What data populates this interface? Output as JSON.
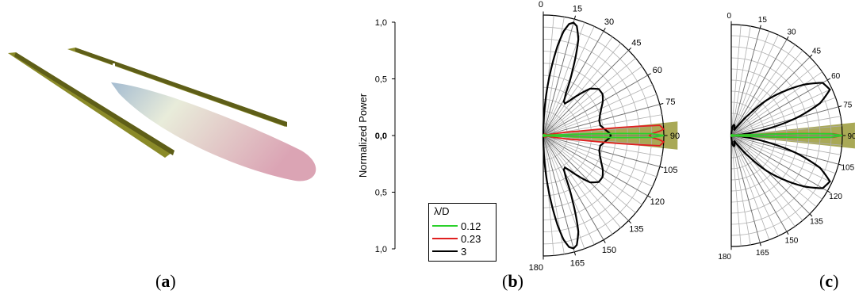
{
  "panel_labels": {
    "a": "a",
    "b": "b",
    "c": "c"
  },
  "colors": {
    "blade": "#8a8a28",
    "blade_dark": "#5e5e18",
    "lobe_pink": "#d79aac",
    "lobe_light": "#e6ead6",
    "lobe_blue": "#9ab4cc",
    "shade": "#8c8c1e"
  },
  "chart_data": [
    {
      "type": "line",
      "panel": "b",
      "coordinate_system": "polar-half",
      "ylabel": "Normalized Power",
      "ylim": [
        -1,
        1
      ],
      "radial_ticks": [
        "1,0",
        "0,5",
        "0,0",
        "0,5",
        "1,0"
      ],
      "angle_ticks": [
        "0",
        "15",
        "30",
        "45",
        "60",
        "75",
        "90",
        "105",
        "120",
        "135",
        "150",
        "165",
        "180"
      ],
      "angle_range_deg": [
        0,
        180
      ],
      "angle_zero_direction": "top",
      "grid": true,
      "legend": {
        "title": "λ/D",
        "entries": [
          "0.12",
          "0.23",
          "3"
        ],
        "placement": "bottom-left"
      },
      "shaded_sector_deg": [
        84,
        96
      ],
      "series": [
        {
          "name": "0.12",
          "color": "#2bd12b",
          "description_points": {
            "theta": [
              0,
              85,
              87,
              88,
              89,
              90,
              91,
              92,
              93,
              95,
              180
            ],
            "r": [
              0,
              0.02,
              0.1,
              0.4,
              0.9,
              1.0,
              0.9,
              0.4,
              0.1,
              0.02,
              0
            ]
          }
        },
        {
          "name": "0.23",
          "color": "#e02020",
          "description_points": {
            "theta": [
              0,
              80,
              83,
              85,
              87,
              88,
              89,
              90,
              91,
              92,
              93,
              95,
              97,
              100,
              180
            ],
            "r": [
              0,
              0.03,
              0.3,
              0.97,
              1.0,
              0.96,
              0.9,
              0.88,
              0.9,
              0.96,
              1.0,
              0.97,
              0.3,
              0.03,
              0
            ]
          }
        },
        {
          "name": "3",
          "color": "#000000",
          "description_points": {
            "theta": [
              0,
              3,
              6,
              9,
              11,
              13,
              15,
              17,
              20,
              24,
              28,
              31,
              34,
              37,
              41,
              45,
              50,
              55,
              60,
              65,
              70,
              75,
              80,
              85,
              88,
              90,
              92,
              95,
              100,
              105,
              110,
              115,
              120,
              125,
              130,
              135,
              139,
              143,
              146,
              149,
              152,
              156,
              160,
              163,
              165,
              167,
              169,
              171,
              174,
              177,
              180
            ],
            "r": [
              0,
              0.25,
              0.5,
              0.75,
              0.88,
              0.95,
              0.97,
              0.95,
              0.85,
              0.6,
              0.4,
              0.33,
              0.32,
              0.36,
              0.45,
              0.55,
              0.6,
              0.6,
              0.57,
              0.53,
              0.5,
              0.48,
              0.48,
              0.52,
              0.55,
              0.56,
              0.55,
              0.52,
              0.48,
              0.48,
              0.5,
              0.53,
              0.57,
              0.6,
              0.6,
              0.55,
              0.45,
              0.36,
              0.32,
              0.33,
              0.4,
              0.6,
              0.85,
              0.95,
              0.97,
              0.95,
              0.88,
              0.75,
              0.5,
              0.25,
              0
            ]
          }
        }
      ]
    },
    {
      "type": "line",
      "panel": "c",
      "coordinate_system": "polar-half",
      "angle_ticks": [
        "0",
        "15",
        "30",
        "45",
        "60",
        "75",
        "90",
        "105",
        "120",
        "135",
        "150",
        "165",
        "180"
      ],
      "angle_range_deg": [
        0,
        180
      ],
      "angle_zero_direction": "top",
      "grid": true,
      "shaded_sector_deg": [
        84,
        96
      ],
      "series": [
        {
          "name": "0.12",
          "color": "#2bd12b",
          "description_points": {
            "theta": [
              0,
              85,
              87,
              88,
              89,
              90,
              91,
              92,
              93,
              95,
              180
            ],
            "r": [
              0,
              0.02,
              0.1,
              0.4,
              0.9,
              1.0,
              0.9,
              0.4,
              0.1,
              0.02,
              0
            ]
          }
        },
        {
          "name": "0.23",
          "color": "#e02020",
          "description_points": {
            "theta": [
              0,
              85,
              87,
              88,
              89,
              90,
              91,
              92,
              93,
              95,
              180
            ],
            "r": [
              0,
              0.02,
              0.12,
              0.45,
              0.92,
              1.0,
              0.92,
              0.45,
              0.12,
              0.02,
              0
            ]
          }
        },
        {
          "name": "3",
          "color": "#000000",
          "description_points": {
            "theta": [
              0,
              5,
              10,
              15,
              20,
              25,
              30,
              35,
              40,
              45,
              50,
              55,
              60,
              65,
              70,
              75,
              80,
              84,
              87,
              90,
              93,
              96,
              100,
              105,
              110,
              115,
              120,
              125,
              130,
              135,
              140,
              145,
              150,
              155,
              160,
              165,
              170,
              175,
              180
            ],
            "r": [
              0,
              0.05,
              0.09,
              0.1,
              0.09,
              0.06,
              0.06,
              0.12,
              0.25,
              0.45,
              0.62,
              0.8,
              0.95,
              0.98,
              0.85,
              0.6,
              0.3,
              0.1,
              0.03,
              0.01,
              0.03,
              0.1,
              0.3,
              0.6,
              0.85,
              0.98,
              0.95,
              0.8,
              0.62,
              0.45,
              0.25,
              0.12,
              0.06,
              0.06,
              0.09,
              0.1,
              0.09,
              0.05,
              0
            ]
          }
        }
      ]
    }
  ]
}
